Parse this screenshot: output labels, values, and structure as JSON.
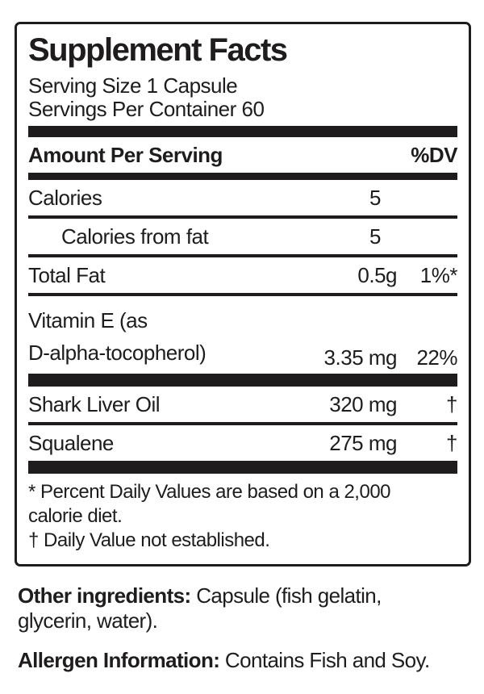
{
  "panel": {
    "title": "Supplement Facts",
    "serving_size": "Serving Size 1 Capsule",
    "servings_per_container": "Servings Per Container 60",
    "column_headers": {
      "amount": "Amount Per Serving",
      "dv": "%DV"
    },
    "rows": [
      {
        "name": "Calories",
        "amount": "5",
        "dv": ""
      },
      {
        "name": "Calories from fat",
        "amount": "5",
        "dv": ""
      },
      {
        "name": "Total Fat",
        "amount": "0.5g",
        "dv": "1%*"
      },
      {
        "name_line1": "Vitamin E (as",
        "name_line2": "D-alpha-tocopherol)",
        "amount": "3.35 mg",
        "dv": "22%"
      },
      {
        "name": "Shark Liver Oil",
        "amount": "320 mg",
        "dv": "†"
      },
      {
        "name": "Squalene",
        "amount": "275 mg",
        "dv": "†"
      }
    ],
    "footnotes": {
      "line1": "* Percent Daily Values are based on a 2,000",
      "line2": "calorie diet.",
      "line3": "† Daily Value not established."
    }
  },
  "other_ingredients": {
    "label": "Other ingredients:",
    "text_line1": "Capsule (fish gelatin,",
    "text_line2": "glycerin, water)."
  },
  "allergen_information": {
    "label": "Allergen Information:",
    "text": "Contains Fish and Soy."
  },
  "colors": {
    "ink": "#1e1c1c",
    "background": "#ffffff"
  }
}
